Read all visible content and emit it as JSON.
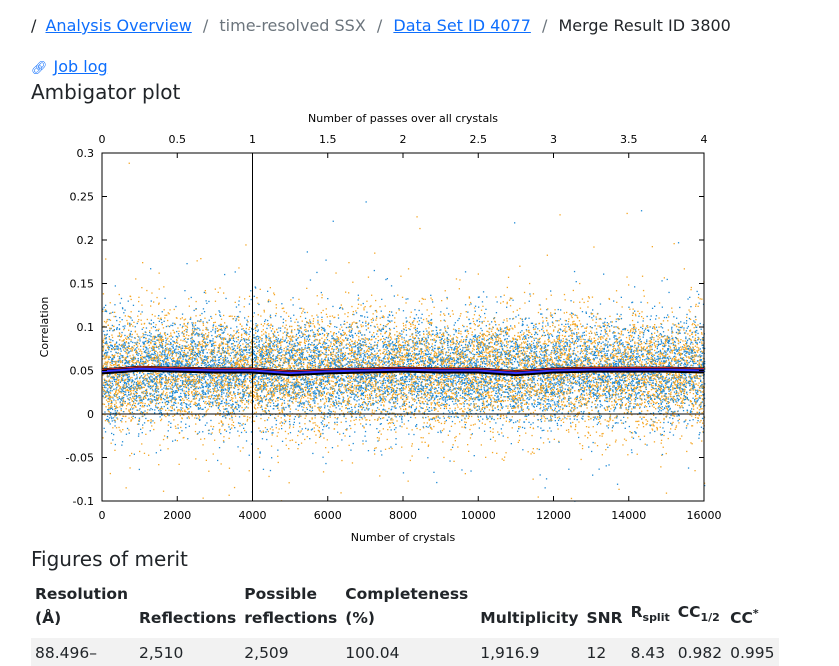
{
  "breadcrumb": {
    "lead_sep": "/",
    "items": [
      {
        "label": "Analysis Overview",
        "link": true
      },
      {
        "label": "time-resolved SSX",
        "link": false
      },
      {
        "label": "Data Set ID 4077",
        "link": true
      },
      {
        "label": "Merge Result ID 3800",
        "link": false
      }
    ],
    "sep": "/"
  },
  "job_log": {
    "icon": "link-icon",
    "label": "Job log"
  },
  "ambigator_heading": "Ambigator plot",
  "chart_data": {
    "type": "scatter",
    "title": "",
    "x_top_label": "Number of passes over all crystals",
    "xlabel": "Number of crystals",
    "ylabel": "Correlation",
    "xlim": [
      0,
      16000
    ],
    "ylim": [
      -0.1,
      0.3
    ],
    "x_top_lim": [
      0,
      4
    ],
    "x_ticks": [
      "0",
      "2000",
      "4000",
      "6000",
      "8000",
      "10000",
      "12000",
      "14000",
      "16000"
    ],
    "x_top_ticks": [
      "0",
      "0.5",
      "1",
      "1.5",
      "2",
      "2.5",
      "3",
      "3.5",
      "4"
    ],
    "y_ticks": [
      "-0.1",
      "-0.05",
      "0",
      "0.05",
      "0.1",
      "0.15",
      "0.2",
      "0.25",
      "0.3"
    ],
    "vertical_marker_x": 4000,
    "colors": {
      "series_a": "#f5a623",
      "series_b": "#1f8ad6",
      "mean_line": "#000000",
      "mean_inner": "#3333ff",
      "mean_red": "#ff3333"
    },
    "scatter_series": [
      {
        "color": "#f5a623",
        "mean": 0.05,
        "spread": 0.033,
        "count": 9000
      },
      {
        "color": "#1f8ad6",
        "mean": 0.05,
        "spread": 0.03,
        "count": 9000
      }
    ],
    "mean_line": {
      "x": [
        0,
        1000,
        2000,
        3000,
        4000,
        5000,
        6000,
        7000,
        8000,
        9000,
        10000,
        11000,
        12000,
        13000,
        14000,
        15000,
        16000
      ],
      "y": [
        0.049,
        0.052,
        0.051,
        0.05,
        0.05,
        0.047,
        0.049,
        0.05,
        0.051,
        0.05,
        0.05,
        0.047,
        0.05,
        0.051,
        0.051,
        0.051,
        0.05
      ]
    }
  },
  "figures_heading": "Figures of merit",
  "fom_table": {
    "headers": [
      {
        "l1": "Resolution",
        "l2": "(Å)"
      },
      {
        "l1": "",
        "l2": "Reflections"
      },
      {
        "l1": "Possible",
        "l2": "reflections"
      },
      {
        "l1": "Completeness",
        "l2": "(%)"
      },
      {
        "l1": "",
        "l2": "Multiplicity"
      },
      {
        "l1": "",
        "l2": "SNR"
      },
      {
        "l1": "",
        "l2": "R",
        "sub": "split"
      },
      {
        "l1": "",
        "l2": "CC",
        "sub": "1/2"
      },
      {
        "l1": "",
        "l2": "CC",
        "sup": "*"
      }
    ],
    "row": [
      "88.496–",
      "2,510",
      "2,509",
      "100.04",
      "1,916.9",
      "12",
      "8.43",
      "0.982",
      "0.995"
    ]
  }
}
